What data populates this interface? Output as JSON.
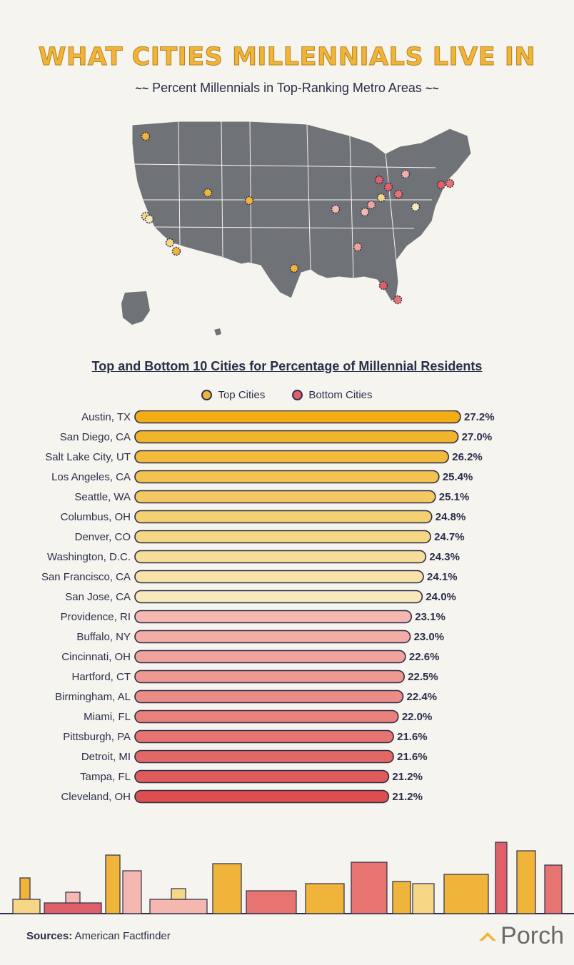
{
  "title": "What Cities Millennials Live In",
  "subtitle": "Percent Millennials in Top-Ranking Metro Areas",
  "legend": {
    "top": "Top Cities",
    "bottom": "Bottom Cities"
  },
  "footer": {
    "sources_label": "Sources:",
    "sources_value": "American Factfinder",
    "brand": "Porch"
  },
  "colors": {
    "top_dot": "#f0b43a",
    "bottom_dot": "#e0606a",
    "map_fill": "#6f7277",
    "text": "#2b2e4a"
  },
  "chart_data": {
    "type": "bar",
    "orientation": "horizontal",
    "title": "Top and Bottom 10 Cities for Percentage of Millennial Residents",
    "xlabel": "",
    "ylabel": "",
    "unit": "%",
    "categories": [
      "Austin, TX",
      "San Diego, CA",
      "Salt Lake City, UT",
      "Los Angeles, CA",
      "Seattle, WA",
      "Columbus, OH",
      "Denver, CO",
      "Washington, D.C.",
      "San Francisco, CA",
      "San Jose, CA",
      "Providence, RI",
      "Buffalo, NY",
      "Cincinnati, OH",
      "Hartford, CT",
      "Birmingham, AL",
      "Miami, FL",
      "Pittsburgh, PA",
      "Detroit, MI",
      "Tampa, FL",
      "Cleveland, OH"
    ],
    "values": [
      27.2,
      27.0,
      26.2,
      25.4,
      25.1,
      24.8,
      24.7,
      24.3,
      24.1,
      24.0,
      23.1,
      23.0,
      22.6,
      22.5,
      22.4,
      22.0,
      21.6,
      21.6,
      21.2,
      21.2
    ],
    "labels": [
      "27.2%",
      "27.0%",
      "26.2%",
      "25.4%",
      "25.1%",
      "24.8%",
      "24.7%",
      "24.3%",
      "24.1%",
      "24.0%",
      "23.1%",
      "23.0%",
      "22.6%",
      "22.5%",
      "22.4%",
      "22.0%",
      "21.6%",
      "21.6%",
      "21.2%",
      "21.2%"
    ],
    "groups": [
      "top",
      "top",
      "top",
      "top",
      "top",
      "top",
      "top",
      "top",
      "top",
      "top",
      "bottom",
      "bottom",
      "bottom",
      "bottom",
      "bottom",
      "bottom",
      "bottom",
      "bottom",
      "bottom",
      "bottom"
    ],
    "bar_colors": [
      "#f2ad17",
      "#f2b42a",
      "#f2bb3c",
      "#f3c24f",
      "#f4c961",
      "#f5d073",
      "#f6d785",
      "#f7dd97",
      "#f8e2a8",
      "#f9e8ba",
      "#f4b8b0",
      "#f2aea6",
      "#f0a39b",
      "#ee9891",
      "#ec8c86",
      "#e9807b",
      "#e67470",
      "#e36865",
      "#e05c5a",
      "#dd4f4e"
    ],
    "xlim": [
      0,
      27.2
    ],
    "grid": false,
    "legend_position": "top-center"
  }
}
